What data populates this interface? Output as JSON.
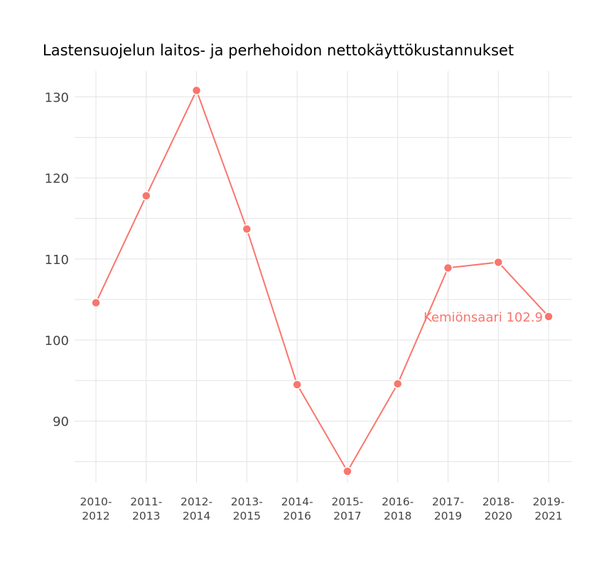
{
  "chart_data": {
    "type": "line",
    "title": "Lastensuojelun laitos- ja perhehoidon nettokäyttökustannukset",
    "xlabel": "",
    "ylabel": "",
    "categories": [
      "2010-\n2012",
      "2011-\n2013",
      "2012-\n2014",
      "2013-\n2015",
      "2014-\n2016",
      "2015-\n2017",
      "2016-\n2018",
      "2017-\n2019",
      "2018-\n2020",
      "2019-\n2021"
    ],
    "series": [
      {
        "name": "Kemiönsaari",
        "values": [
          104.6,
          117.8,
          130.8,
          113.7,
          94.5,
          83.8,
          94.6,
          108.9,
          109.6,
          102.9
        ],
        "color": "#F8766D"
      }
    ],
    "annotation": "Kemiönsaari 102.9",
    "ylim": [
      82.4,
      133.2
    ],
    "yticks": [
      90,
      100,
      110,
      120,
      130
    ],
    "grid": true,
    "legend": "none"
  }
}
